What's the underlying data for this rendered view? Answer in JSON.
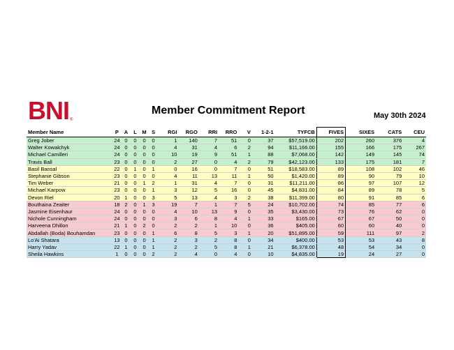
{
  "logo": {
    "text": "BNI",
    "mark": "®",
    "color": "#c8102e"
  },
  "report": {
    "title": "Member Commitment Report",
    "date": "May 30th 2024"
  },
  "row_colors": {
    "green": "#c6efce",
    "yellow": "#ffffc4",
    "red": "#f8cbd0",
    "blue": "#c5e3ef"
  },
  "columns": [
    "Member Name",
    "P",
    "A",
    "L",
    "M",
    "S",
    "RGI",
    "RGO",
    "RRI",
    "RRO",
    "V",
    "1-2-1",
    "TYFCB",
    "FIVES",
    "SIXES",
    "CATS",
    "CEU"
  ],
  "rows": [
    {
      "tier": "green",
      "cells": [
        "Greg Jober",
        "24",
        "0",
        "0",
        "0",
        "0",
        "1",
        "140",
        "7",
        "51",
        "0",
        "37",
        "$57,519.00",
        "202",
        "260",
        "376",
        "4"
      ]
    },
    {
      "tier": "green",
      "cells": [
        "Walter Kowalchyk",
        "24",
        "0",
        "0",
        "0",
        "0",
        "4",
        "31",
        "4",
        "6",
        "2",
        "94",
        "$11,166.00",
        "155",
        "166",
        "175",
        "267"
      ]
    },
    {
      "tier": "green",
      "cells": [
        "Michael Camilleri",
        "24",
        "0",
        "0",
        "0",
        "0",
        "10",
        "19",
        "9",
        "51",
        "1",
        "88",
        "$7,068.00",
        "142",
        "149",
        "145",
        "74"
      ]
    },
    {
      "tier": "green",
      "cells": [
        "Travis Ball",
        "23",
        "0",
        "0",
        "0",
        "0",
        "2",
        "27",
        "0",
        "4",
        "2",
        "79",
        "$42,123.00",
        "133",
        "175",
        "181",
        "7"
      ]
    },
    {
      "tier": "yellow",
      "cells": [
        "Basil Bansal",
        "22",
        "0",
        "1",
        "0",
        "1",
        "0",
        "16",
        "0",
        "7",
        "0",
        "51",
        "$18,583.00",
        "89",
        "108",
        "102",
        "46"
      ]
    },
    {
      "tier": "yellow",
      "cells": [
        "Stephanie Gibson",
        "23",
        "0",
        "0",
        "0",
        "0",
        "4",
        "11",
        "13",
        "11",
        "1",
        "50",
        "$1,420.00",
        "89",
        "90",
        "79",
        "10"
      ]
    },
    {
      "tier": "yellow",
      "cells": [
        "Tim Weber",
        "21",
        "0",
        "0",
        "1",
        "2",
        "1",
        "31",
        "4",
        "7",
        "0",
        "31",
        "$11,211.00",
        "86",
        "97",
        "107",
        "12"
      ]
    },
    {
      "tier": "yellow",
      "cells": [
        "Michael Karpow",
        "23",
        "0",
        "0",
        "0",
        "1",
        "3",
        "12",
        "5",
        "16",
        "0",
        "45",
        "$4,831.00",
        "84",
        "89",
        "78",
        "5"
      ]
    },
    {
      "tier": "yellow",
      "cells": [
        "Devon Riel",
        "20",
        "1",
        "0",
        "0",
        "3",
        "5",
        "13",
        "4",
        "3",
        "2",
        "38",
        "$11,399.00",
        "80",
        "91",
        "85",
        "6"
      ]
    },
    {
      "tier": "red",
      "cells": [
        "Bouthaina Zeaiter",
        "18",
        "2",
        "0",
        "1",
        "3",
        "19",
        "7",
        "1",
        "7",
        "5",
        "24",
        "$10,702.00",
        "74",
        "85",
        "77",
        "6"
      ]
    },
    {
      "tier": "red",
      "cells": [
        "Jasmine Eisenhaur",
        "24",
        "0",
        "0",
        "0",
        "0",
        "4",
        "10",
        "13",
        "9",
        "0",
        "35",
        "$3,430.00",
        "73",
        "76",
        "62",
        "0"
      ]
    },
    {
      "tier": "red",
      "cells": [
        "Nichole Cunningham",
        "24",
        "0",
        "0",
        "0",
        "0",
        "3",
        "6",
        "8",
        "4",
        "1",
        "33",
        "$165.00",
        "67",
        "67",
        "50",
        "0"
      ]
    },
    {
      "tier": "red",
      "cells": [
        "Harveena Dhillon",
        "21",
        "1",
        "0",
        "2",
        "0",
        "2",
        "2",
        "1",
        "10",
        "0",
        "36",
        "$405.00",
        "60",
        "60",
        "40",
        "0"
      ]
    },
    {
      "tier": "red",
      "cells": [
        "Abdallah (Boda) Bouhamdan",
        "23",
        "0",
        "0",
        "0",
        "1",
        "6",
        "8",
        "5",
        "3",
        "1",
        "20",
        "$51,895.00",
        "59",
        "111",
        "97",
        "2"
      ]
    },
    {
      "tier": "blue",
      "cells": [
        "Lo'Ai Shatara",
        "13",
        "0",
        "0",
        "0",
        "1",
        "2",
        "3",
        "2",
        "8",
        "0",
        "34",
        "$400.00",
        "53",
        "53",
        "43",
        "8"
      ]
    },
    {
      "tier": "blue",
      "cells": [
        "Harry Yadav",
        "22",
        "1",
        "0",
        "0",
        "1",
        "2",
        "2",
        "5",
        "8",
        "1",
        "21",
        "$6,378.00",
        "48",
        "54",
        "34",
        "0"
      ]
    },
    {
      "tier": "blue",
      "cells": [
        "Sheila Hawkins",
        "1",
        "0",
        "0",
        "0",
        "2",
        "2",
        "4",
        "0",
        "4",
        "0",
        "10",
        "$4,835.00",
        "19",
        "24",
        "27",
        "0"
      ]
    }
  ]
}
